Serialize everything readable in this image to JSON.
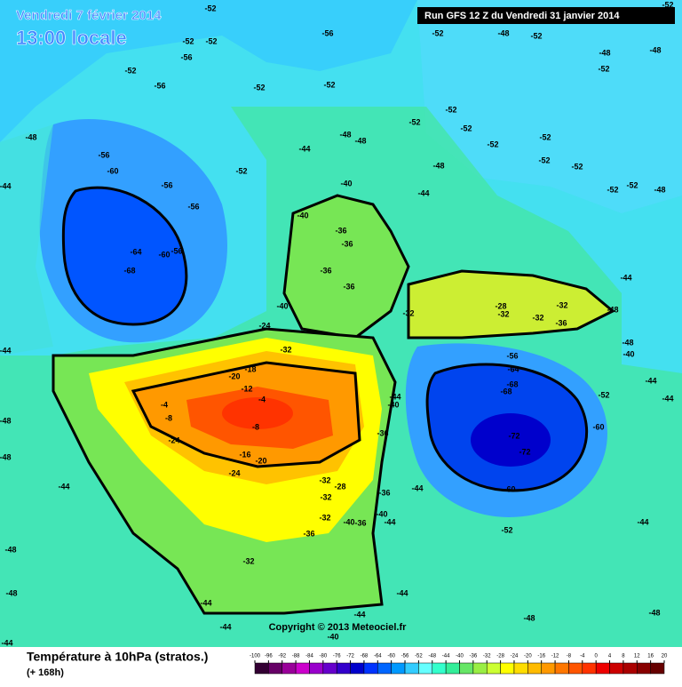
{
  "header": {
    "date": "Vendredi 7 février 2014",
    "time": "13:00 locale",
    "run": "Run GFS 12 Z du Vendredi 31 janvier 2014"
  },
  "footer": {
    "title": "Température à 10hPa (stratos.)",
    "lead": "(+ 168h)",
    "copyright": "Copyright © 2013 Meteociel.fr"
  },
  "legend": {
    "ticks": [
      -100,
      -96,
      -92,
      -88,
      -84,
      -80,
      -76,
      -72,
      -68,
      -64,
      -60,
      -56,
      -52,
      -48,
      -44,
      -40,
      -36,
      -32,
      -28,
      -24,
      -20,
      -16,
      -12,
      -8,
      -4,
      0,
      4,
      8,
      12,
      16,
      20
    ],
    "colors": [
      "#330033",
      "#660066",
      "#990099",
      "#cc00cc",
      "#9900cc",
      "#6600cc",
      "#3300cc",
      "#0000cc",
      "#0033ff",
      "#0066ff",
      "#0099ff",
      "#33ccff",
      "#66ffff",
      "#33ffcc",
      "#33ee99",
      "#66e666",
      "#99ee44",
      "#ccff33",
      "#ffff00",
      "#ffdd00",
      "#ffbb00",
      "#ff9900",
      "#ff7700",
      "#ff5500",
      "#ff3300",
      "#ee0000",
      "#cc0000",
      "#aa0000",
      "#880000",
      "#660000"
    ]
  },
  "contour_labels": [
    -52,
    -52,
    -52,
    -56,
    -56,
    -52,
    -56,
    -52,
    -52,
    -52,
    -48,
    -52,
    -48,
    -52,
    -48,
    -56,
    -60,
    -56,
    -56,
    -52,
    -48,
    -44,
    -44,
    -48,
    -48,
    -52,
    -52,
    -52,
    -52,
    -52,
    -52,
    -52,
    -52,
    -52,
    -48,
    -48,
    -44,
    -40,
    -40,
    -36,
    -36,
    -36,
    -36,
    -64,
    -68,
    -60,
    -56,
    -40,
    -32,
    -28,
    -32,
    -32,
    -32,
    -36,
    -56,
    -64,
    -68,
    -68,
    -72,
    -72,
    -60,
    -52,
    -44,
    -48,
    -48,
    -40,
    -44,
    -44,
    -60,
    -52,
    -24,
    -32,
    -18,
    -20,
    -12,
    -4,
    -8,
    -4,
    -8,
    -24,
    -16,
    -20,
    -24,
    -32,
    -28,
    -32,
    -32,
    -36,
    -32,
    -36,
    -40,
    -36,
    -40,
    -36,
    -40,
    -44,
    -44,
    -44,
    -44,
    -48,
    -48,
    -44,
    -44,
    -44,
    -44,
    -48,
    -44,
    -48,
    -44,
    -48,
    -48,
    -44,
    -40,
    -52
  ]
}
